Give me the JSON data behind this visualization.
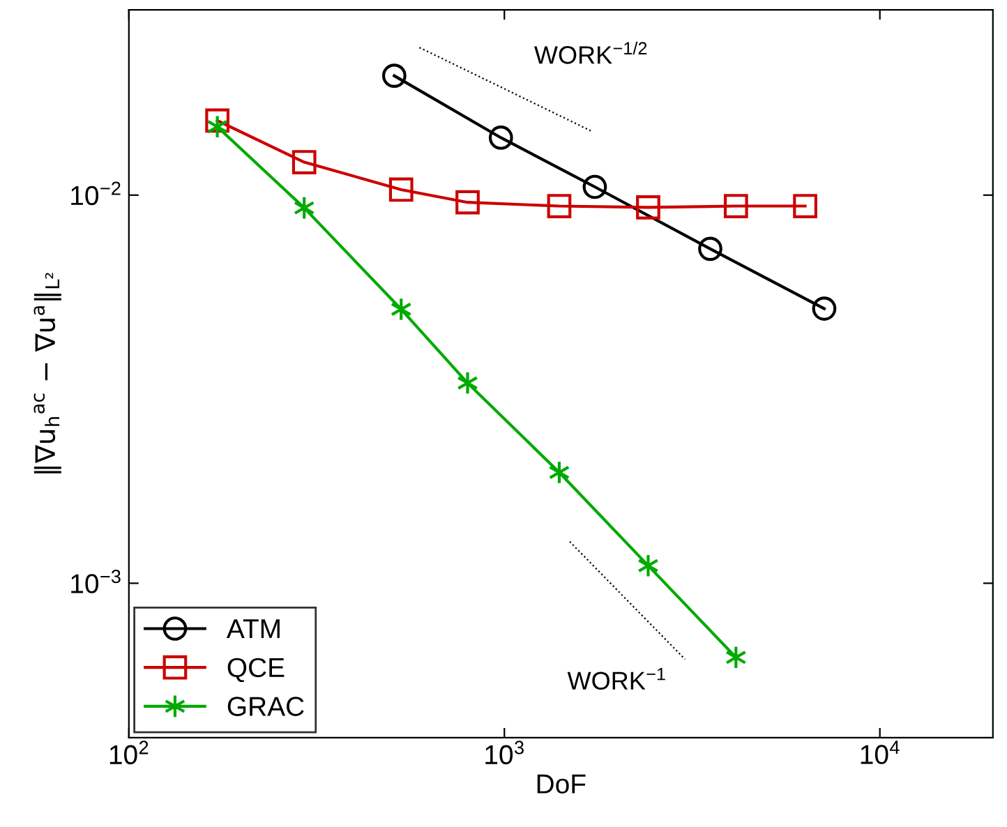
{
  "chart_data": {
    "type": "line",
    "xlabel": "DoF",
    "ylabel": "‖∇u$_{h}$$^{ac}$ − ∇u$^{a}$‖$_{L²}$",
    "log": "xy",
    "xlim": [
      100,
      20000
    ],
    "ylim": [
      0.0004,
      0.03
    ],
    "xticks": [
      {
        "value": 100,
        "label": "10$^{2}$"
      },
      {
        "value": 1000,
        "label": "10$^{3}$"
      },
      {
        "value": 10000,
        "label": "10$^{4}$"
      }
    ],
    "yticks": [
      {
        "value": 0.001,
        "label": "10$^{−3}$"
      },
      {
        "value": 0.01,
        "label": "10$^{−2}$"
      }
    ],
    "grid": false,
    "legend": "bottom left",
    "series": [
      {
        "name": "ATM",
        "color": "#000000",
        "marker": "circle",
        "line_style": "solid",
        "x": [
          509,
          979,
          1741,
          3534,
          7110
        ],
        "values": [
          0.0203,
          0.01406,
          0.0105,
          0.00727,
          0.0051
        ]
      },
      {
        "name": "QCE",
        "color": "#cc0000",
        "marker": "square",
        "line_style": "solid",
        "x": [
          172,
          293,
          531,
          798,
          1400,
          2415,
          4137,
          6325
        ],
        "values": [
          0.01556,
          0.01216,
          0.01033,
          0.00958,
          0.00937,
          0.0093,
          0.00937,
          0.00937
        ]
      },
      {
        "name": "GRAC",
        "color": "#00aa00",
        "marker": "cross",
        "line_style": "solid",
        "x": [
          172,
          293,
          531,
          798,
          1400,
          2415,
          4137
        ],
        "values": [
          0.015,
          0.00927,
          0.00508,
          0.00328,
          0.00193,
          0.00111,
          0.000644
        ]
      },
      {
        "color": "#000000",
        "marker": "none",
        "line_style": "dotted",
        "x": [
          594,
          1710
        ],
        "values": [
          0.024,
          0.0146
        ]
      },
      {
        "color": "#000000",
        "marker": "none",
        "line_style": "dotted",
        "x": [
          1493,
          3027
        ],
        "values": [
          0.00128,
          0.000637
        ]
      }
    ],
    "annotations": [
      "WORK$^{−1/2}$",
      "WORK$^{−1}$"
    ]
  }
}
